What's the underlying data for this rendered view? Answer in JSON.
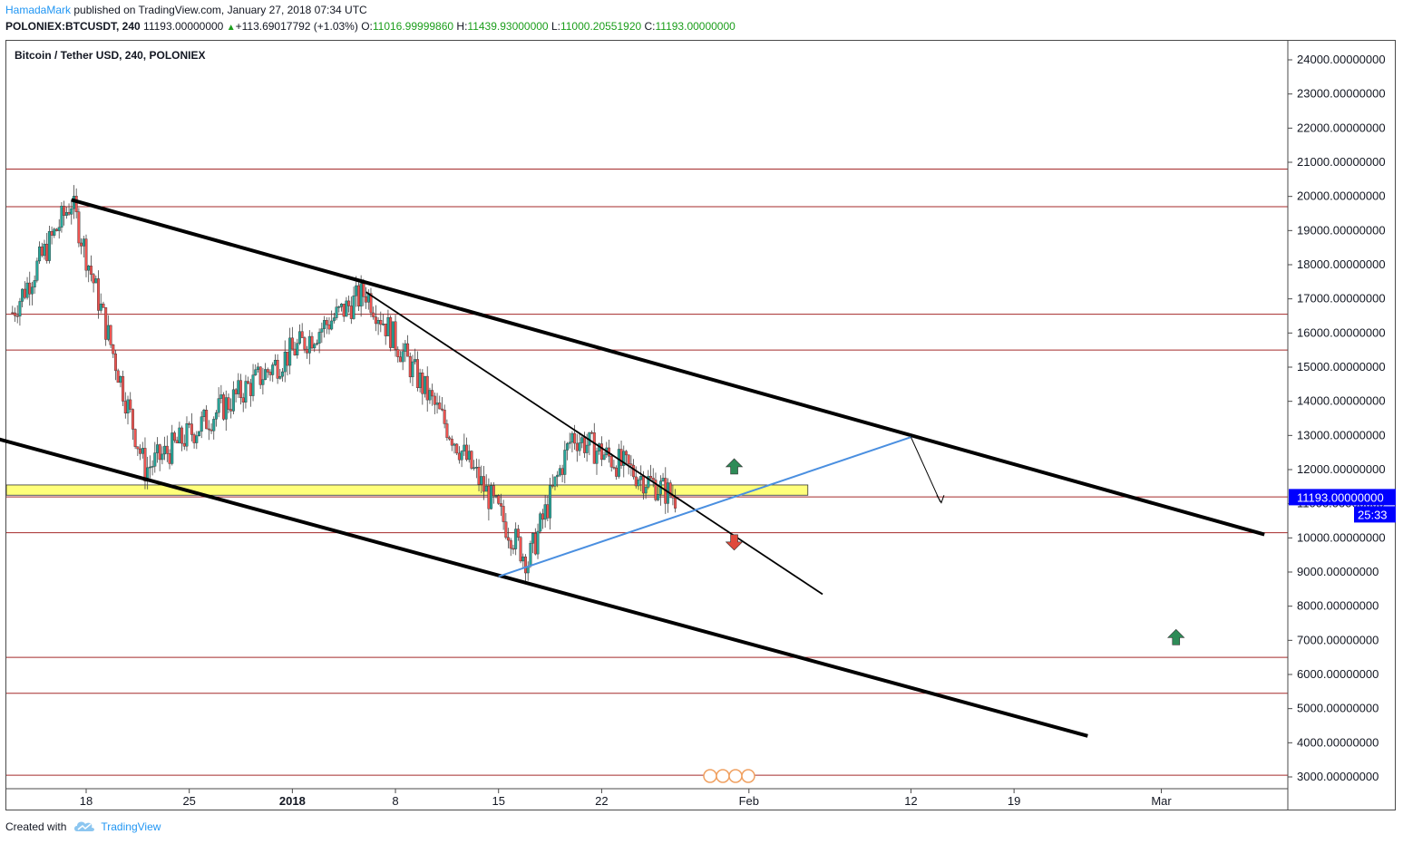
{
  "header": {
    "author": "HamadaMark",
    "published_text": "published on TradingView.com, January 27, 2018 07:34 UTC"
  },
  "symbol_bar": {
    "symbol": "POLONIEX:BTCUSDT, 240",
    "last": "11193.00000000",
    "change": "+113.69017792 (+1.03%)",
    "o_label": "O:",
    "open": "11016.99999860",
    "h_label": "H:",
    "high": "11439.93000000",
    "l_label": "L:",
    "low": "11000.20551920",
    "c_label": "C:",
    "close": "11193.00000000"
  },
  "colors": {
    "up": "#26a69a",
    "down": "#ef5350",
    "support_lines": "#a52a2a",
    "zone": "#ffff7a",
    "wedge_line": "#4a8fe0",
    "price_tag": "#0000ff"
  },
  "chart_data": {
    "type": "candlestick",
    "title": "Bitcoin / Tether USD, 240, POLONIEX",
    "ylim": [
      2600,
      24900
    ],
    "y_ticks": [
      3000,
      4000,
      5000,
      6000,
      7000,
      8000,
      9000,
      10000,
      11000,
      12000,
      13000,
      14000,
      15000,
      16000,
      17000,
      18000,
      19000,
      20000,
      21000,
      22000,
      23000,
      24000
    ],
    "y_tick_labels": [
      "3000.00000000",
      "4000.00000000",
      "5000.00000000",
      "6000.00000000",
      "7000.00000000",
      "8000.00000000",
      "9000.00000000",
      "10000.00000000",
      "11000.00000000",
      "12000.00000000",
      "13000.00000000",
      "14000.00000000",
      "15000.00000000",
      "16000.00000000",
      "17000.00000000",
      "18000.00000000",
      "19000.00000000",
      "20000.00000000",
      "21000.00000000",
      "22000.00000000",
      "23000.00000000",
      "24000.00000000"
    ],
    "x_ticks": [
      {
        "label": "18",
        "bold": false
      },
      {
        "label": "25",
        "bold": false
      },
      {
        "label": "2018",
        "bold": true
      },
      {
        "label": "8",
        "bold": false
      },
      {
        "label": "15",
        "bold": false
      },
      {
        "label": "22",
        "bold": false
      },
      {
        "label": "Feb",
        "bold": false
      },
      {
        "label": "12",
        "bold": false
      },
      {
        "label": "19",
        "bold": false
      },
      {
        "label": "Mar",
        "bold": false
      }
    ],
    "current_price_label": "11193.00000000",
    "countdown_label": "25:33",
    "current_price": 11193,
    "horizontal_levels": [
      20800,
      19700,
      16550,
      15500,
      11200,
      10150,
      6500,
      5450,
      3050
    ],
    "zone": [
      11250,
      11550
    ],
    "key_points": [
      {
        "date": "2017-12-13",
        "price": 16600
      },
      {
        "date": "2017-12-17",
        "price": 19850
      },
      {
        "date": "2017-12-22",
        "price": 12000
      },
      {
        "date": "2018-01-06",
        "price": 17200
      },
      {
        "date": "2018-01-17",
        "price": 9300
      },
      {
        "date": "2018-01-20",
        "price": 13000
      },
      {
        "date": "2018-01-27",
        "price": 11193
      }
    ],
    "annotations": {
      "arrows": [
        "up",
        "down",
        "up"
      ]
    }
  },
  "footer": {
    "created_with": "Created with",
    "brand": "TradingView"
  }
}
